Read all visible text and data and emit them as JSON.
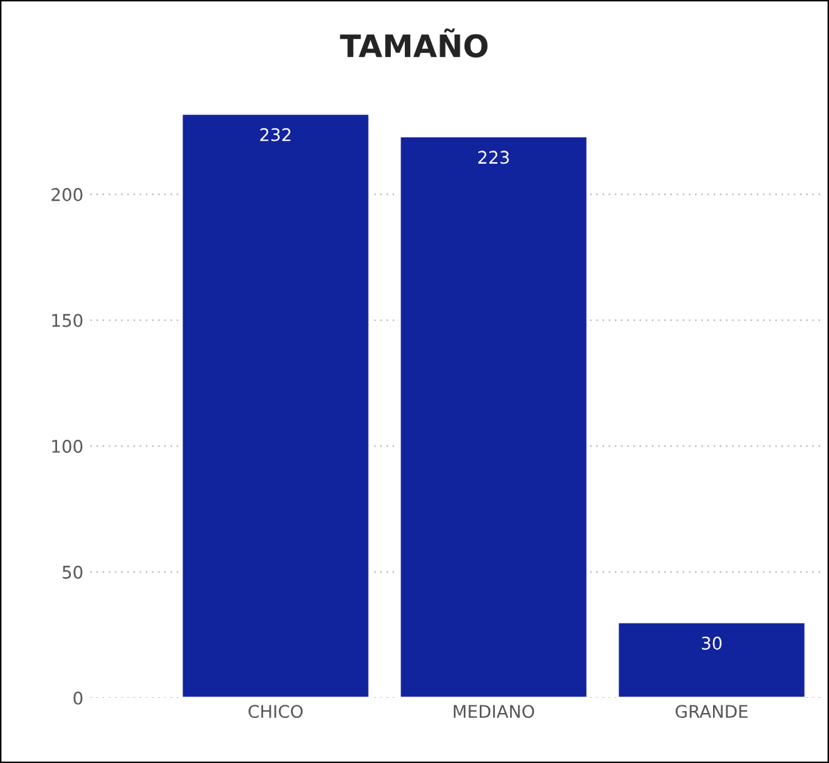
{
  "chart_data": {
    "type": "bar",
    "title": "TAMAÑO",
    "categories": [
      "CHICO",
      "MEDIANO",
      "GRANDE"
    ],
    "values": [
      232,
      223,
      30
    ],
    "color": "#12239e",
    "ylim": [
      0,
      232
    ],
    "yticks": [
      0,
      50,
      100,
      150,
      200
    ],
    "grid": "y",
    "data_labels": true
  }
}
